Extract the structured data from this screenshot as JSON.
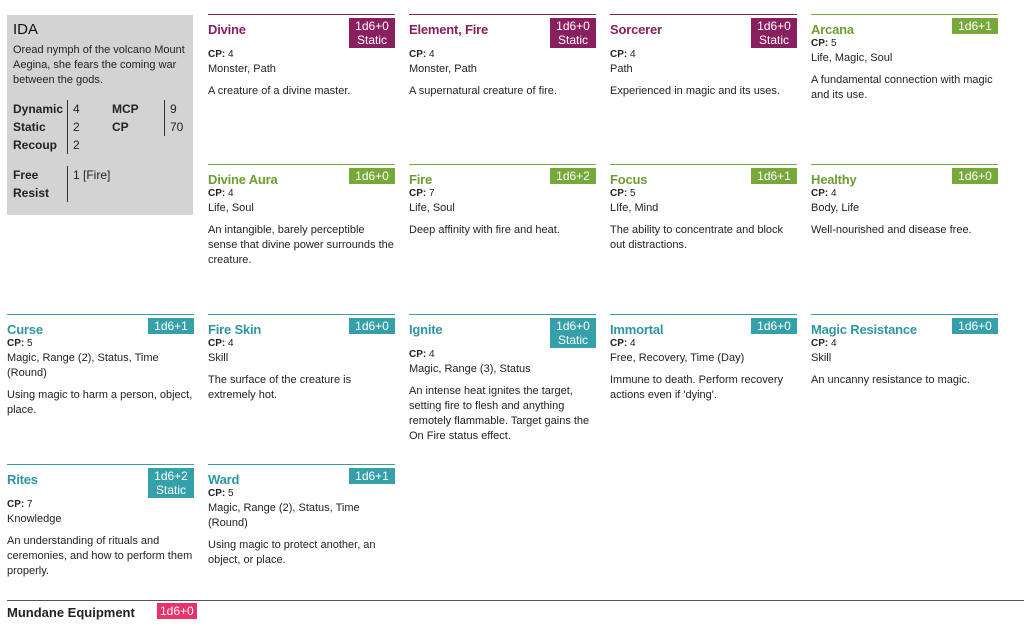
{
  "creature": {
    "name": "IDA",
    "description": "Oread nymph of the volcano Mount Aegina, she fears the coming war between the gods.",
    "stats": {
      "dynamic_label": "Dynamic",
      "dynamic": "4",
      "static_label": "Static",
      "static": "2",
      "recoup_label": "Recoup",
      "recoup": "2",
      "mcp_label": "MCP",
      "mcp": "9",
      "cp_label": "CP",
      "cp": "70",
      "free_resist_label_1": "Free",
      "free_resist_label_2": "Resist",
      "free_resist": "1 [Fire]"
    }
  },
  "cards": [
    {
      "title": "Divine",
      "badge_line1": "1d6+0",
      "badge_line2": "Static",
      "cp_label": "CP:",
      "cp": "4",
      "tags": "Monster, Path",
      "text": "A creature of a divine master.",
      "color": "#8a1f5f"
    },
    {
      "title": "Element, Fire",
      "badge_line1": "1d6+0",
      "badge_line2": "Static",
      "cp_label": "CP:",
      "cp": "4",
      "tags": "Monster, Path",
      "text": "A supernatural creature of fire.",
      "color": "#8a1f5f"
    },
    {
      "title": "Sorcerer",
      "badge_line1": "1d6+0",
      "badge_line2": "Static",
      "cp_label": "CP:",
      "cp": "4",
      "tags": "Path",
      "text": "Experienced in magic and its uses.",
      "color": "#8a1f5f"
    },
    {
      "title": "Arcana",
      "badge_line1": "1d6+1",
      "badge_line2": "",
      "cp_label": "CP:",
      "cp": "5",
      "tags": "Life, Magic, Soul",
      "text": "A fundamental connection with magic and its use.",
      "color": "#77a83a"
    },
    {
      "title": "Divine Aura",
      "badge_line1": "1d6+0",
      "badge_line2": "",
      "cp_label": "CP:",
      "cp": "4",
      "tags": "Life, Soul",
      "text": "An intangible, barely perceptible sense that divine power surrounds the creature.",
      "color": "#77a83a"
    },
    {
      "title": "Fire",
      "badge_line1": "1d6+2",
      "badge_line2": "",
      "cp_label": "CP:",
      "cp": "7",
      "tags": "Life, Soul",
      "text": "Deep affinity with fire and heat.",
      "color": "#77a83a"
    },
    {
      "title": "Focus",
      "badge_line1": "1d6+1",
      "badge_line2": "",
      "cp_label": "CP:",
      "cp": "5",
      "tags": "LIfe, Mind",
      "text": "The ability to concentrate and block out distractions.",
      "color": "#77a83a"
    },
    {
      "title": "Healthy",
      "badge_line1": "1d6+0",
      "badge_line2": "",
      "cp_label": "CP:",
      "cp": "4",
      "tags": "Body, Life",
      "text": "Well-nourished and disease free.",
      "color": "#77a83a"
    },
    {
      "title": "Curse",
      "badge_line1": "1d6+1",
      "badge_line2": "",
      "cp_label": "CP:",
      "cp": "5",
      "tags": "Magic, Range (2), Status, Time (Round)",
      "text": "Using magic to harm a person, object, place.",
      "color": "#36a0aa"
    },
    {
      "title": "Fire Skin",
      "badge_line1": "1d6+0",
      "badge_line2": "",
      "cp_label": "CP:",
      "cp": "4",
      "tags": "Skill",
      "text": "The surface of the creature is extremely hot.",
      "color": "#36a0aa"
    },
    {
      "title": "Ignite",
      "badge_line1": "1d6+0",
      "badge_line2": "Static",
      "cp_label": "CP:",
      "cp": "4",
      "tags": "Magic, Range (3), Status",
      "text": "An intense heat ignites the target, setting fire to flesh and anything remotely flammable. Target gains the On Fire status effect.",
      "color": "#36a0aa"
    },
    {
      "title": "Immortal",
      "badge_line1": "1d6+0",
      "badge_line2": "",
      "cp_label": "CP:",
      "cp": "4",
      "tags": "Free, Recovery, Time (Day)",
      "text": "Immune to death. Perform recovery actions even if 'dying'.",
      "color": "#36a0aa"
    },
    {
      "title": "Magic Resistance",
      "badge_line1": "1d6+0",
      "badge_line2": "",
      "cp_label": "CP:",
      "cp": "4",
      "tags": "Skill",
      "text": "An uncanny resistance to magic.",
      "color": "#36a0aa"
    },
    {
      "title": "Rites",
      "badge_line1": "1d6+2",
      "badge_line2": "Static",
      "cp_label": "CP:",
      "cp": "7",
      "tags": "Knowledge",
      "text": "An understanding of rituals and ceremonies, and how to perform them properly.",
      "color": "#36a0aa"
    },
    {
      "title": "Ward",
      "badge_line1": "1d6+1",
      "badge_line2": "",
      "cp_label": "CP:",
      "cp": "5",
      "tags": "Magic, Range (2), Status, Time (Round)",
      "text": "Using magic to protect another, an object, or place.",
      "color": "#36a0aa"
    }
  ],
  "footer": {
    "title": "Mundane Equipment",
    "badge": "1d6+0",
    "badge_color": "#e8336b"
  }
}
